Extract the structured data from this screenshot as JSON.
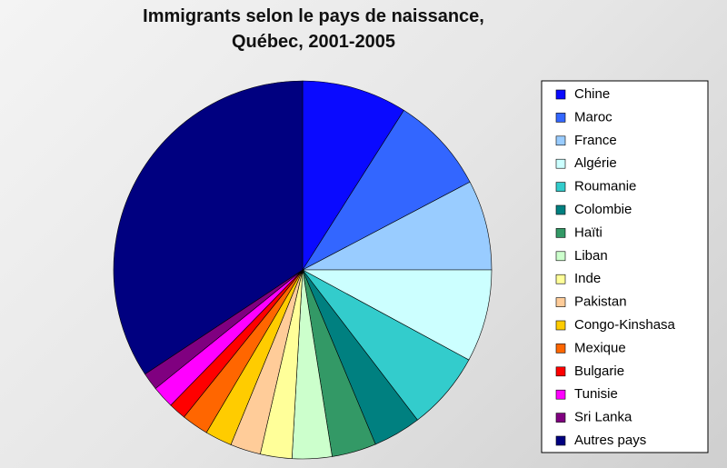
{
  "chart_data": {
    "type": "pie",
    "title": "Immigrants selon le pays de naissance, Québec, 2001-2005",
    "categories": [
      "Chine",
      "Maroc",
      "France",
      "Algérie",
      "Roumanie",
      "Colombie",
      "Haïti",
      "Liban",
      "Inde",
      "Pakistan",
      "Congo-Kinshasa",
      "Mexique",
      "Bulgarie",
      "Tunisie",
      "Sri Lanka",
      "Autres pays"
    ],
    "values": [
      9.0,
      8.3,
      7.7,
      7.9,
      6.7,
      4.1,
      3.8,
      3.4,
      2.7,
      2.6,
      2.3,
      2.3,
      1.5,
      1.9,
      1.5,
      34.3
    ],
    "colors": [
      "#0a0aff",
      "#3366ff",
      "#99ccff",
      "#ccffff",
      "#33cccc",
      "#008080",
      "#339966",
      "#ccffcc",
      "#ffff99",
      "#ffcc99",
      "#ffcc00",
      "#ff6600",
      "#ff0000",
      "#ff00ff",
      "#800080",
      "#000080"
    ],
    "legend": "right"
  }
}
